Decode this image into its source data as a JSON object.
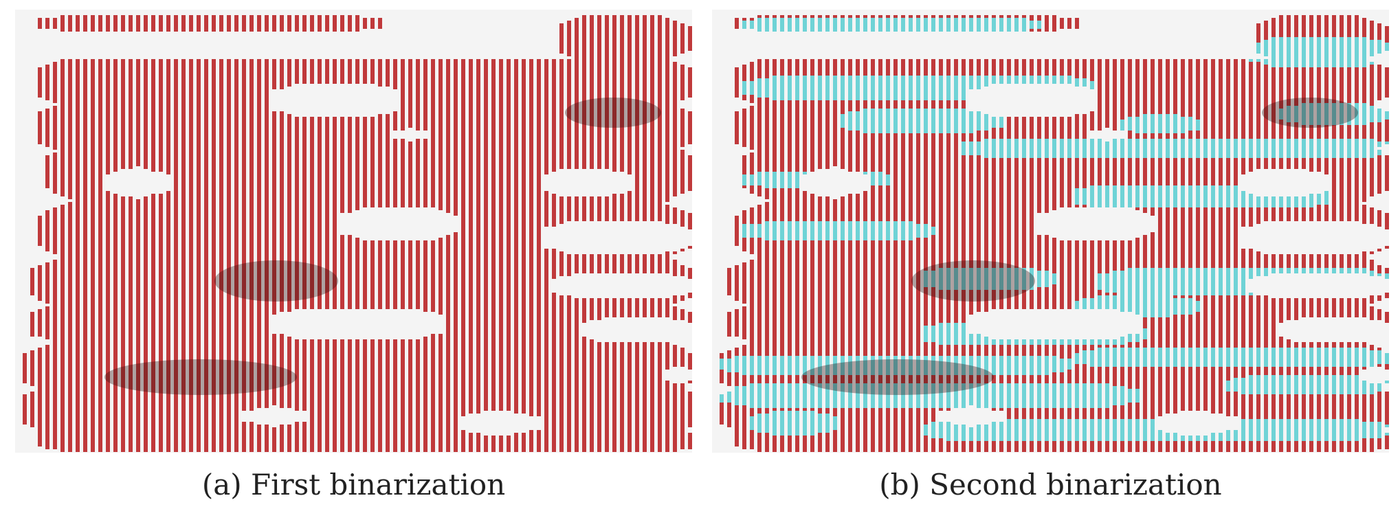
{
  "figure": {
    "panels": [
      {
        "id": "a",
        "caption": "(a) First binarization",
        "layers": [
          "first"
        ]
      },
      {
        "id": "b",
        "caption": "(b) Second binarization",
        "layers": [
          "first",
          "second"
        ]
      }
    ]
  },
  "colors": {
    "background": "#ffffff",
    "first_mask": "#c0393b",
    "second_mask": "#6fd3d6",
    "shadow": "#2a0a0a"
  }
}
